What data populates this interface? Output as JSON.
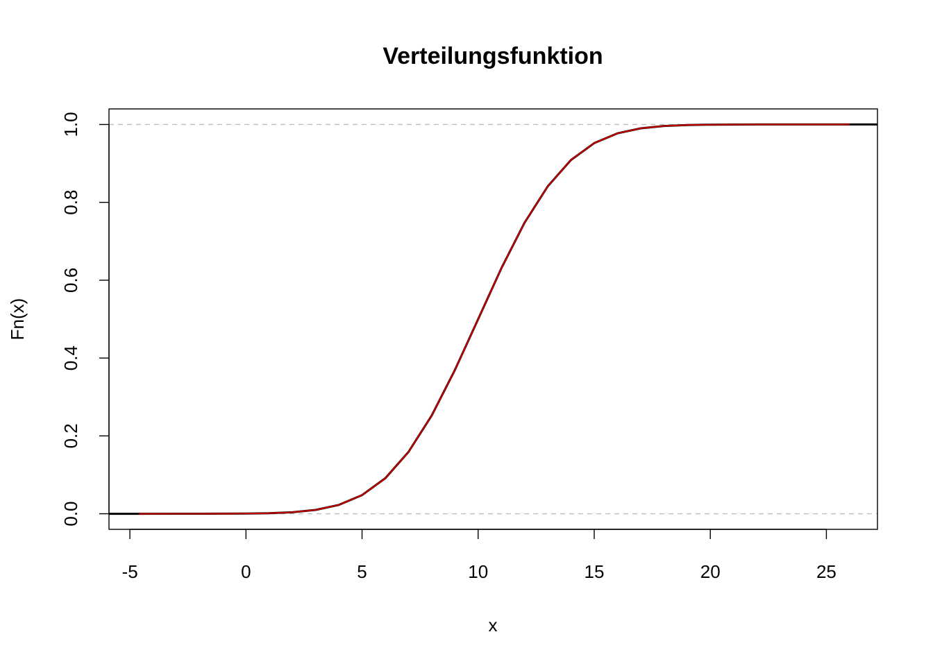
{
  "chart_data": {
    "type": "line",
    "title": "Verteilungsfunktion",
    "xlabel": "x",
    "ylabel": "Fn(x)",
    "xlim": [
      -5.9,
      27.2
    ],
    "ylim": [
      -0.04,
      1.04
    ],
    "x_ticks": [
      -5,
      0,
      5,
      10,
      15,
      20,
      25
    ],
    "y_ticks": [
      0.0,
      0.2,
      0.4,
      0.6,
      0.8,
      1.0
    ],
    "y_tick_labels": [
      "0.0",
      "0.2",
      "0.4",
      "0.6",
      "0.8",
      "1.0"
    ],
    "reference_lines": {
      "y": [
        0,
        1
      ],
      "style": "dashed",
      "color": "#bebebe"
    },
    "grid": false,
    "series": [
      {
        "color": "#000000",
        "x": [
          -5.9,
          -4.5,
          -2,
          0,
          1,
          2,
          3,
          4,
          5,
          6,
          7,
          8,
          9,
          10,
          11,
          12,
          13,
          14,
          15,
          16,
          17,
          18,
          19,
          20,
          22,
          24,
          26,
          27.2
        ],
        "y": [
          0,
          0,
          0.0001,
          0.0004,
          0.0013,
          0.0038,
          0.0099,
          0.0228,
          0.0478,
          0.0912,
          0.1587,
          0.2525,
          0.3694,
          0.5,
          0.6306,
          0.7475,
          0.8413,
          0.9088,
          0.9522,
          0.9772,
          0.9901,
          0.9962,
          0.9987,
          0.9996,
          1,
          1,
          1,
          1
        ]
      },
      {
        "color": "#cc0000",
        "x": [
          -4.6,
          -2,
          0,
          1,
          2,
          3,
          4,
          5,
          6,
          7,
          8,
          9,
          10,
          11,
          12,
          13,
          14,
          15,
          16,
          17,
          18,
          19,
          20,
          22,
          24,
          26
        ],
        "y": [
          0,
          0.0001,
          0.0004,
          0.0013,
          0.0038,
          0.0099,
          0.0228,
          0.0478,
          0.0912,
          0.1587,
          0.2525,
          0.3694,
          0.5,
          0.6306,
          0.7475,
          0.8413,
          0.9088,
          0.9522,
          0.9772,
          0.9901,
          0.9962,
          0.9987,
          0.9996,
          1,
          1,
          1
        ]
      }
    ]
  }
}
